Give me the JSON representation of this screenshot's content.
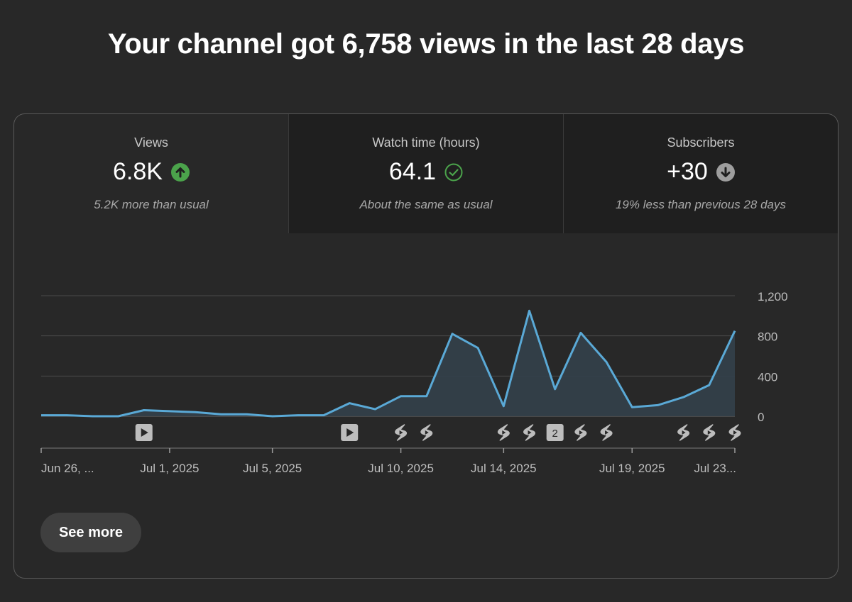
{
  "headline": "Your channel got 6,758 views in the last 28 days",
  "tabs": [
    {
      "label": "Views",
      "value": "6.8K",
      "note": "5.2K more than usual",
      "icon": "arrow-up-icon",
      "icon_color": "#4ba34b",
      "active": true
    },
    {
      "label": "Watch time (hours)",
      "value": "64.1",
      "note": "About the same as usual",
      "icon": "check-circle-icon",
      "icon_color": "#4ba34b",
      "active": false
    },
    {
      "label": "Subscribers",
      "value": "+30",
      "note": "19% less than previous 28 days",
      "icon": "arrow-down-icon",
      "icon_color": "#9e9e9e",
      "active": false
    }
  ],
  "colors": {
    "line": "#5aa9d6",
    "area": "#33404a",
    "grid": "#4a4a4a",
    "background": "#282828"
  },
  "chart_data": {
    "type": "area",
    "x": [
      "Jun 26",
      "Jun 27",
      "Jun 28",
      "Jun 29",
      "Jun 30",
      "Jul 1",
      "Jul 2",
      "Jul 3",
      "Jul 4",
      "Jul 5",
      "Jul 6",
      "Jul 7",
      "Jul 8",
      "Jul 9",
      "Jul 10",
      "Jul 11",
      "Jul 12",
      "Jul 13",
      "Jul 14",
      "Jul 15",
      "Jul 16",
      "Jul 17",
      "Jul 18",
      "Jul 19",
      "Jul 20",
      "Jul 21",
      "Jul 22",
      "Jul 23"
    ],
    "series": [
      {
        "values": [
          10,
          10,
          0,
          0,
          60,
          50,
          40,
          20,
          20,
          0,
          10,
          10,
          130,
          70,
          200,
          200,
          820,
          680,
          100,
          1050,
          270,
          830,
          540,
          90,
          110,
          190,
          310,
          850
        ]
      }
    ],
    "ylim": [
      0,
      1200
    ],
    "yticks": [
      "1,200",
      "800",
      "400",
      "0"
    ],
    "ytick_values": [
      1200,
      800,
      400,
      0
    ],
    "xtick_labels": [
      "Jun 26, ...",
      "Jul 1, 2025",
      "Jul 5, 2025",
      "Jul 10, 2025",
      "Jul 14, 2025",
      "Jul 19, 2025",
      "Jul 23..."
    ],
    "xtick_index": [
      0,
      5,
      9,
      14,
      18,
      23,
      27
    ],
    "grid": true,
    "markers": [
      {
        "index": 4,
        "type": "video"
      },
      {
        "index": 12,
        "type": "video"
      },
      {
        "index": 14,
        "type": "short"
      },
      {
        "index": 15,
        "type": "short"
      },
      {
        "index": 18,
        "type": "short"
      },
      {
        "index": 19,
        "type": "short"
      },
      {
        "index": 20,
        "type": "count",
        "label": "2"
      },
      {
        "index": 21,
        "type": "short"
      },
      {
        "index": 22,
        "type": "short"
      },
      {
        "index": 25,
        "type": "short"
      },
      {
        "index": 26,
        "type": "short"
      },
      {
        "index": 27,
        "type": "short"
      }
    ]
  },
  "see_more_label": "See more"
}
